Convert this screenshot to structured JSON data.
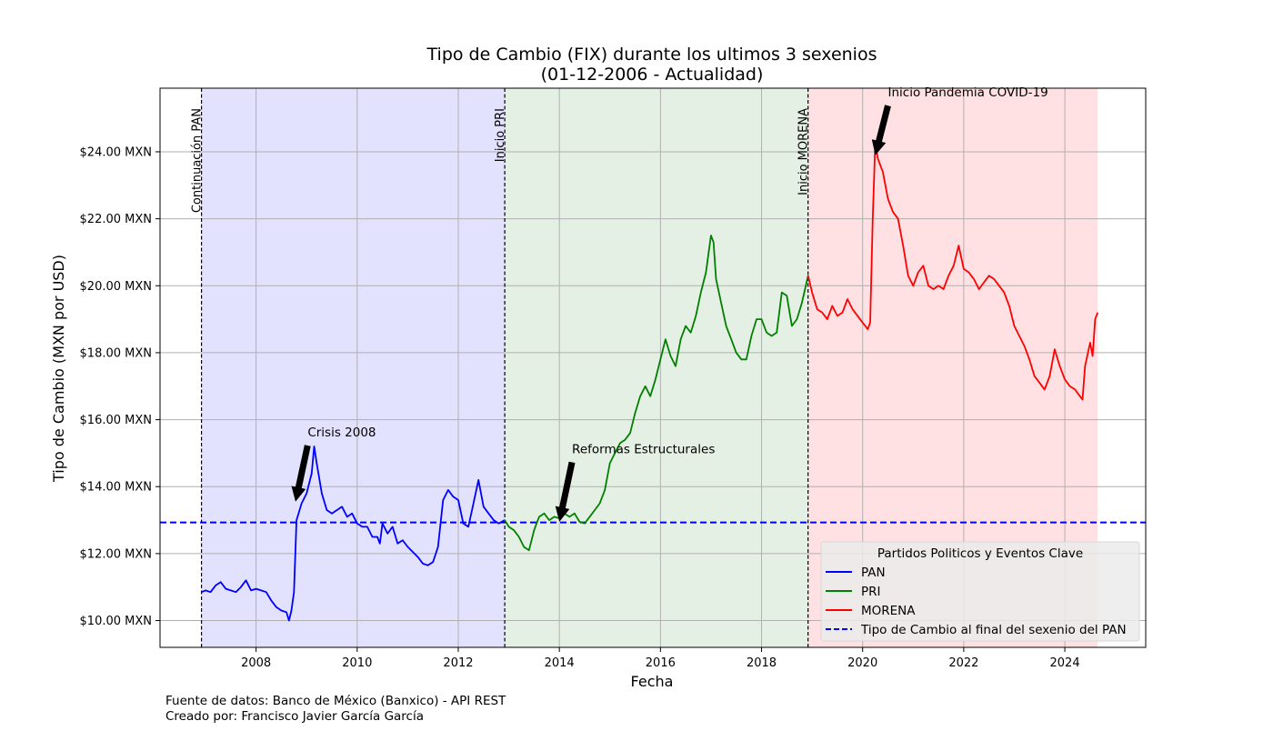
{
  "chart_data": {
    "type": "line",
    "title": "Tipo de Cambio (FIX) durante los ultimos 3 sexenios",
    "subtitle": "(01-12-2006 - Actualidad)",
    "xlabel": "Fecha",
    "ylabel": "Tipo de Cambio (MXN por USD)",
    "xlim": [
      2006.1,
      2025.6
    ],
    "ylim": [
      9.2,
      25.9
    ],
    "x_ticks": [
      2008,
      2010,
      2012,
      2014,
      2016,
      2018,
      2020,
      2022,
      2024
    ],
    "x_tick_labels": [
      "2008",
      "2010",
      "2012",
      "2014",
      "2016",
      "2018",
      "2020",
      "2022",
      "2024"
    ],
    "y_ticks": [
      10,
      12,
      14,
      16,
      18,
      20,
      22,
      24
    ],
    "y_tick_labels": [
      "$10.00 MXN",
      "$12.00 MXN",
      "$14.00 MXN",
      "$16.00 MXN",
      "$18.00 MXN",
      "$20.00 MXN",
      "$22.00 MXN",
      "$24.00 MXN"
    ],
    "grid": true,
    "legend_title": "Partidos Politicos y Eventos Clave",
    "legend_position": "lower-right",
    "periods": [
      {
        "start": 2006.92,
        "end": 2012.92,
        "color": "#e2e2ff"
      },
      {
        "start": 2012.92,
        "end": 2018.92,
        "color": "#e5f0e5"
      },
      {
        "start": 2018.92,
        "end": 2024.65,
        "color": "#ffe0e3"
      }
    ],
    "vlines": [
      {
        "x": 2006.92,
        "label": "Continuación PAN"
      },
      {
        "x": 2012.92,
        "label": "Inicio PRI"
      },
      {
        "x": 2018.92,
        "label": "Inicio MORENA"
      }
    ],
    "hline": {
      "y": 12.93,
      "color": "#0000ff",
      "name": "Tipo de Cambio al final del sexenio del PAN"
    },
    "annotations": [
      {
        "text": "Crisis 2008",
        "target": [
          2008.78,
          13.55
        ],
        "text_pos": [
          2009.02,
          15.5
        ]
      },
      {
        "text": "Reformas Estructurales",
        "target": [
          2014.0,
          12.95
        ],
        "text_pos": [
          2014.25,
          15.0
        ]
      },
      {
        "text": "Inicio Pandemia COVID-19",
        "target": [
          2020.25,
          23.9
        ],
        "text_pos": [
          2020.5,
          25.65
        ]
      }
    ],
    "series": [
      {
        "name": "PAN",
        "color": "#0000ff",
        "points": [
          [
            2006.92,
            10.85
          ],
          [
            2007.0,
            10.9
          ],
          [
            2007.1,
            10.85
          ],
          [
            2007.2,
            11.05
          ],
          [
            2007.3,
            11.15
          ],
          [
            2007.4,
            10.95
          ],
          [
            2007.5,
            10.9
          ],
          [
            2007.6,
            10.85
          ],
          [
            2007.7,
            11.0
          ],
          [
            2007.8,
            11.2
          ],
          [
            2007.9,
            10.9
          ],
          [
            2008.0,
            10.95
          ],
          [
            2008.1,
            10.9
          ],
          [
            2008.2,
            10.85
          ],
          [
            2008.3,
            10.6
          ],
          [
            2008.4,
            10.4
          ],
          [
            2008.5,
            10.3
          ],
          [
            2008.6,
            10.25
          ],
          [
            2008.65,
            10.0
          ],
          [
            2008.7,
            10.3
          ],
          [
            2008.75,
            10.85
          ],
          [
            2008.8,
            13.0
          ],
          [
            2008.9,
            13.5
          ],
          [
            2009.0,
            13.8
          ],
          [
            2009.1,
            14.4
          ],
          [
            2009.15,
            15.2
          ],
          [
            2009.2,
            14.7
          ],
          [
            2009.3,
            13.8
          ],
          [
            2009.4,
            13.3
          ],
          [
            2009.5,
            13.2
          ],
          [
            2009.6,
            13.3
          ],
          [
            2009.7,
            13.4
          ],
          [
            2009.8,
            13.1
          ],
          [
            2009.9,
            13.2
          ],
          [
            2010.0,
            12.9
          ],
          [
            2010.1,
            12.8
          ],
          [
            2010.2,
            12.8
          ],
          [
            2010.3,
            12.5
          ],
          [
            2010.4,
            12.5
          ],
          [
            2010.45,
            12.3
          ],
          [
            2010.5,
            12.9
          ],
          [
            2010.6,
            12.6
          ],
          [
            2010.7,
            12.8
          ],
          [
            2010.8,
            12.3
          ],
          [
            2010.9,
            12.4
          ],
          [
            2011.0,
            12.2
          ],
          [
            2011.1,
            12.05
          ],
          [
            2011.2,
            11.9
          ],
          [
            2011.3,
            11.7
          ],
          [
            2011.4,
            11.65
          ],
          [
            2011.5,
            11.75
          ],
          [
            2011.6,
            12.2
          ],
          [
            2011.7,
            13.6
          ],
          [
            2011.8,
            13.9
          ],
          [
            2011.9,
            13.7
          ],
          [
            2012.0,
            13.6
          ],
          [
            2012.1,
            12.9
          ],
          [
            2012.2,
            12.8
          ],
          [
            2012.3,
            13.5
          ],
          [
            2012.4,
            14.2
          ],
          [
            2012.5,
            13.4
          ],
          [
            2012.6,
            13.2
          ],
          [
            2012.7,
            13.0
          ],
          [
            2012.8,
            12.9
          ],
          [
            2012.92,
            13.0
          ]
        ]
      },
      {
        "name": "PRI",
        "color": "#008000",
        "points": [
          [
            2012.92,
            13.0
          ],
          [
            2013.0,
            12.8
          ],
          [
            2013.1,
            12.7
          ],
          [
            2013.2,
            12.5
          ],
          [
            2013.3,
            12.2
          ],
          [
            2013.4,
            12.1
          ],
          [
            2013.5,
            12.7
          ],
          [
            2013.6,
            13.1
          ],
          [
            2013.7,
            13.2
          ],
          [
            2013.8,
            13.0
          ],
          [
            2013.9,
            13.1
          ],
          [
            2014.0,
            13.05
          ],
          [
            2014.1,
            13.2
          ],
          [
            2014.2,
            13.1
          ],
          [
            2014.3,
            13.2
          ],
          [
            2014.4,
            12.95
          ],
          [
            2014.5,
            12.9
          ],
          [
            2014.6,
            13.1
          ],
          [
            2014.7,
            13.3
          ],
          [
            2014.8,
            13.5
          ],
          [
            2014.9,
            13.9
          ],
          [
            2015.0,
            14.7
          ],
          [
            2015.1,
            15.0
          ],
          [
            2015.2,
            15.3
          ],
          [
            2015.3,
            15.4
          ],
          [
            2015.4,
            15.6
          ],
          [
            2015.5,
            16.2
          ],
          [
            2015.6,
            16.7
          ],
          [
            2015.7,
            17.0
          ],
          [
            2015.8,
            16.7
          ],
          [
            2015.9,
            17.2
          ],
          [
            2016.0,
            17.8
          ],
          [
            2016.1,
            18.4
          ],
          [
            2016.2,
            17.9
          ],
          [
            2016.3,
            17.6
          ],
          [
            2016.4,
            18.4
          ],
          [
            2016.5,
            18.8
          ],
          [
            2016.6,
            18.6
          ],
          [
            2016.7,
            19.1
          ],
          [
            2016.8,
            19.8
          ],
          [
            2016.9,
            20.4
          ],
          [
            2017.0,
            21.5
          ],
          [
            2017.05,
            21.3
          ],
          [
            2017.1,
            20.2
          ],
          [
            2017.2,
            19.5
          ],
          [
            2017.3,
            18.8
          ],
          [
            2017.4,
            18.4
          ],
          [
            2017.5,
            18.0
          ],
          [
            2017.6,
            17.8
          ],
          [
            2017.7,
            17.8
          ],
          [
            2017.8,
            18.5
          ],
          [
            2017.9,
            19.0
          ],
          [
            2018.0,
            19.0
          ],
          [
            2018.1,
            18.6
          ],
          [
            2018.2,
            18.5
          ],
          [
            2018.3,
            18.6
          ],
          [
            2018.4,
            19.8
          ],
          [
            2018.5,
            19.7
          ],
          [
            2018.6,
            18.8
          ],
          [
            2018.7,
            19.0
          ],
          [
            2018.8,
            19.5
          ],
          [
            2018.92,
            20.3
          ]
        ]
      },
      {
        "name": "MORENA",
        "color": "#ff0000",
        "points": [
          [
            2018.92,
            20.3
          ],
          [
            2019.0,
            19.8
          ],
          [
            2019.1,
            19.3
          ],
          [
            2019.2,
            19.2
          ],
          [
            2019.3,
            19.0
          ],
          [
            2019.4,
            19.4
          ],
          [
            2019.5,
            19.1
          ],
          [
            2019.6,
            19.2
          ],
          [
            2019.7,
            19.6
          ],
          [
            2019.8,
            19.3
          ],
          [
            2019.9,
            19.1
          ],
          [
            2020.0,
            18.9
          ],
          [
            2020.1,
            18.7
          ],
          [
            2020.15,
            18.9
          ],
          [
            2020.2,
            22.0
          ],
          [
            2020.25,
            24.3
          ],
          [
            2020.3,
            23.8
          ],
          [
            2020.4,
            23.4
          ],
          [
            2020.5,
            22.6
          ],
          [
            2020.6,
            22.2
          ],
          [
            2020.7,
            22.0
          ],
          [
            2020.8,
            21.2
          ],
          [
            2020.9,
            20.3
          ],
          [
            2021.0,
            20.0
          ],
          [
            2021.1,
            20.4
          ],
          [
            2021.2,
            20.6
          ],
          [
            2021.3,
            20.0
          ],
          [
            2021.4,
            19.9
          ],
          [
            2021.5,
            20.0
          ],
          [
            2021.6,
            19.9
          ],
          [
            2021.7,
            20.3
          ],
          [
            2021.8,
            20.6
          ],
          [
            2021.9,
            21.2
          ],
          [
            2022.0,
            20.5
          ],
          [
            2022.1,
            20.4
          ],
          [
            2022.2,
            20.2
          ],
          [
            2022.3,
            19.9
          ],
          [
            2022.4,
            20.1
          ],
          [
            2022.5,
            20.3
          ],
          [
            2022.6,
            20.2
          ],
          [
            2022.7,
            20.0
          ],
          [
            2022.8,
            19.8
          ],
          [
            2022.9,
            19.4
          ],
          [
            2023.0,
            18.8
          ],
          [
            2023.1,
            18.5
          ],
          [
            2023.2,
            18.2
          ],
          [
            2023.3,
            17.8
          ],
          [
            2023.4,
            17.3
          ],
          [
            2023.5,
            17.1
          ],
          [
            2023.6,
            16.9
          ],
          [
            2023.7,
            17.3
          ],
          [
            2023.8,
            18.1
          ],
          [
            2023.9,
            17.6
          ],
          [
            2024.0,
            17.2
          ],
          [
            2024.1,
            17.0
          ],
          [
            2024.2,
            16.9
          ],
          [
            2024.3,
            16.7
          ],
          [
            2024.35,
            16.6
          ],
          [
            2024.4,
            17.6
          ],
          [
            2024.5,
            18.3
          ],
          [
            2024.55,
            17.9
          ],
          [
            2024.6,
            19.0
          ],
          [
            2024.65,
            19.2
          ]
        ]
      }
    ]
  },
  "footer": {
    "line1": "Fuente de datos: Banco de México (Banxico) - API REST",
    "line2": "Creado por: Francisco Javier García García"
  }
}
